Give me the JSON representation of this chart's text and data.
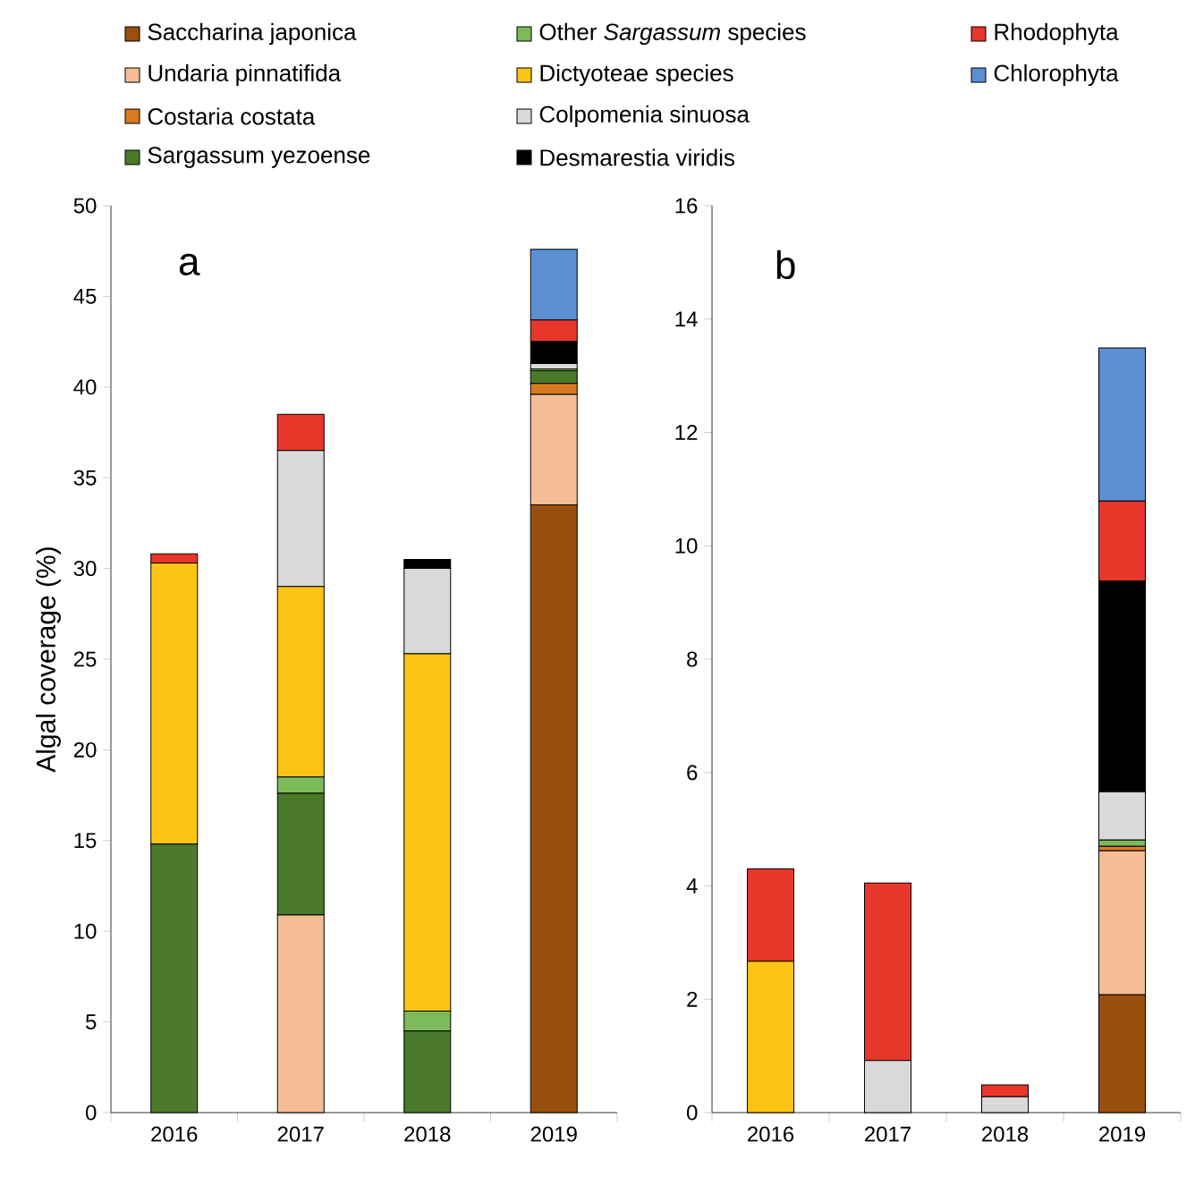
{
  "chart_data": [
    {
      "type": "bar",
      "stacked": true,
      "categories": [
        "2016",
        "2017",
        "2018",
        "2019"
      ],
      "ylabel": "Algal coverage (%)",
      "annotations": [
        "a"
      ],
      "ylim": [
        0,
        50
      ],
      "yticks": [
        0,
        5,
        10,
        15,
        20,
        25,
        30,
        35,
        40,
        45,
        50
      ],
      "legend": "top",
      "series": [
        {
          "name": "Saccharina japonica",
          "color": "#99500f",
          "values": [
            0,
            0,
            0,
            33.5
          ]
        },
        {
          "name": "Undaria pinnatifida",
          "color": "#f5bd96",
          "values": [
            0,
            10.9,
            0,
            6.1
          ]
        },
        {
          "name": "Costaria costata",
          "color": "#d97a1e",
          "values": [
            0,
            0,
            0,
            0.6
          ]
        },
        {
          "name": "Sargassum yezoense",
          "color": "#4a7a2a",
          "values": [
            14.8,
            6.7,
            4.5,
            0.7
          ]
        },
        {
          "name": "Other *Sargassum* species",
          "color": "#7dbb5a",
          "values": [
            0,
            0.9,
            1.1,
            0.1
          ]
        },
        {
          "name": "Dictyoteae species",
          "color": "#fcc515",
          "values": [
            15.5,
            10.5,
            19.7,
            0
          ]
        },
        {
          "name": "Colpomenia sinuosa",
          "color": "#d9d9d9",
          "values": [
            0,
            7.5,
            4.7,
            0.3
          ]
        },
        {
          "name": "Desmarestia viridis",
          "color": "#000000",
          "values": [
            0,
            0,
            0.5,
            1.2
          ]
        },
        {
          "name": "Rhodophyta",
          "color": "#e8372a",
          "values": [
            0.5,
            2.0,
            0,
            1.2
          ]
        },
        {
          "name": "Chlorophyta",
          "color": "#5b8fd4",
          "values": [
            0,
            0,
            0,
            3.9
          ]
        }
      ]
    },
    {
      "type": "bar",
      "stacked": true,
      "categories": [
        "2016",
        "2017",
        "2018",
        "2019"
      ],
      "annotations": [
        "b"
      ],
      "ylim": [
        0,
        16
      ],
      "yticks": [
        0,
        2,
        4,
        6,
        8,
        10,
        12,
        14,
        16
      ],
      "series": [
        {
          "color": "#99500f",
          "values": [
            0,
            0,
            0,
            2.08
          ]
        },
        {
          "color": "#f5bd96",
          "values": [
            0,
            0,
            0,
            2.54
          ]
        },
        {
          "color": "#d97a1e",
          "values": [
            0,
            0,
            0,
            0.08
          ]
        },
        {
          "color": "#4a7a2a",
          "values": [
            0,
            0,
            0,
            0
          ]
        },
        {
          "color": "#7dbb5a",
          "values": [
            0,
            0,
            0,
            0.11
          ]
        },
        {
          "color": "#fcc515",
          "values": [
            2.67,
            0,
            0,
            0
          ]
        },
        {
          "color": "#d9d9d9",
          "values": [
            0,
            0.92,
            0.28,
            0.85
          ]
        },
        {
          "color": "#000000",
          "values": [
            0,
            0,
            0,
            3.72
          ]
        },
        {
          "color": "#e8372a",
          "values": [
            1.63,
            3.13,
            0.21,
            1.41
          ]
        },
        {
          "color": "#5b8fd4",
          "values": [
            0,
            0,
            0,
            2.7
          ]
        }
      ]
    }
  ]
}
